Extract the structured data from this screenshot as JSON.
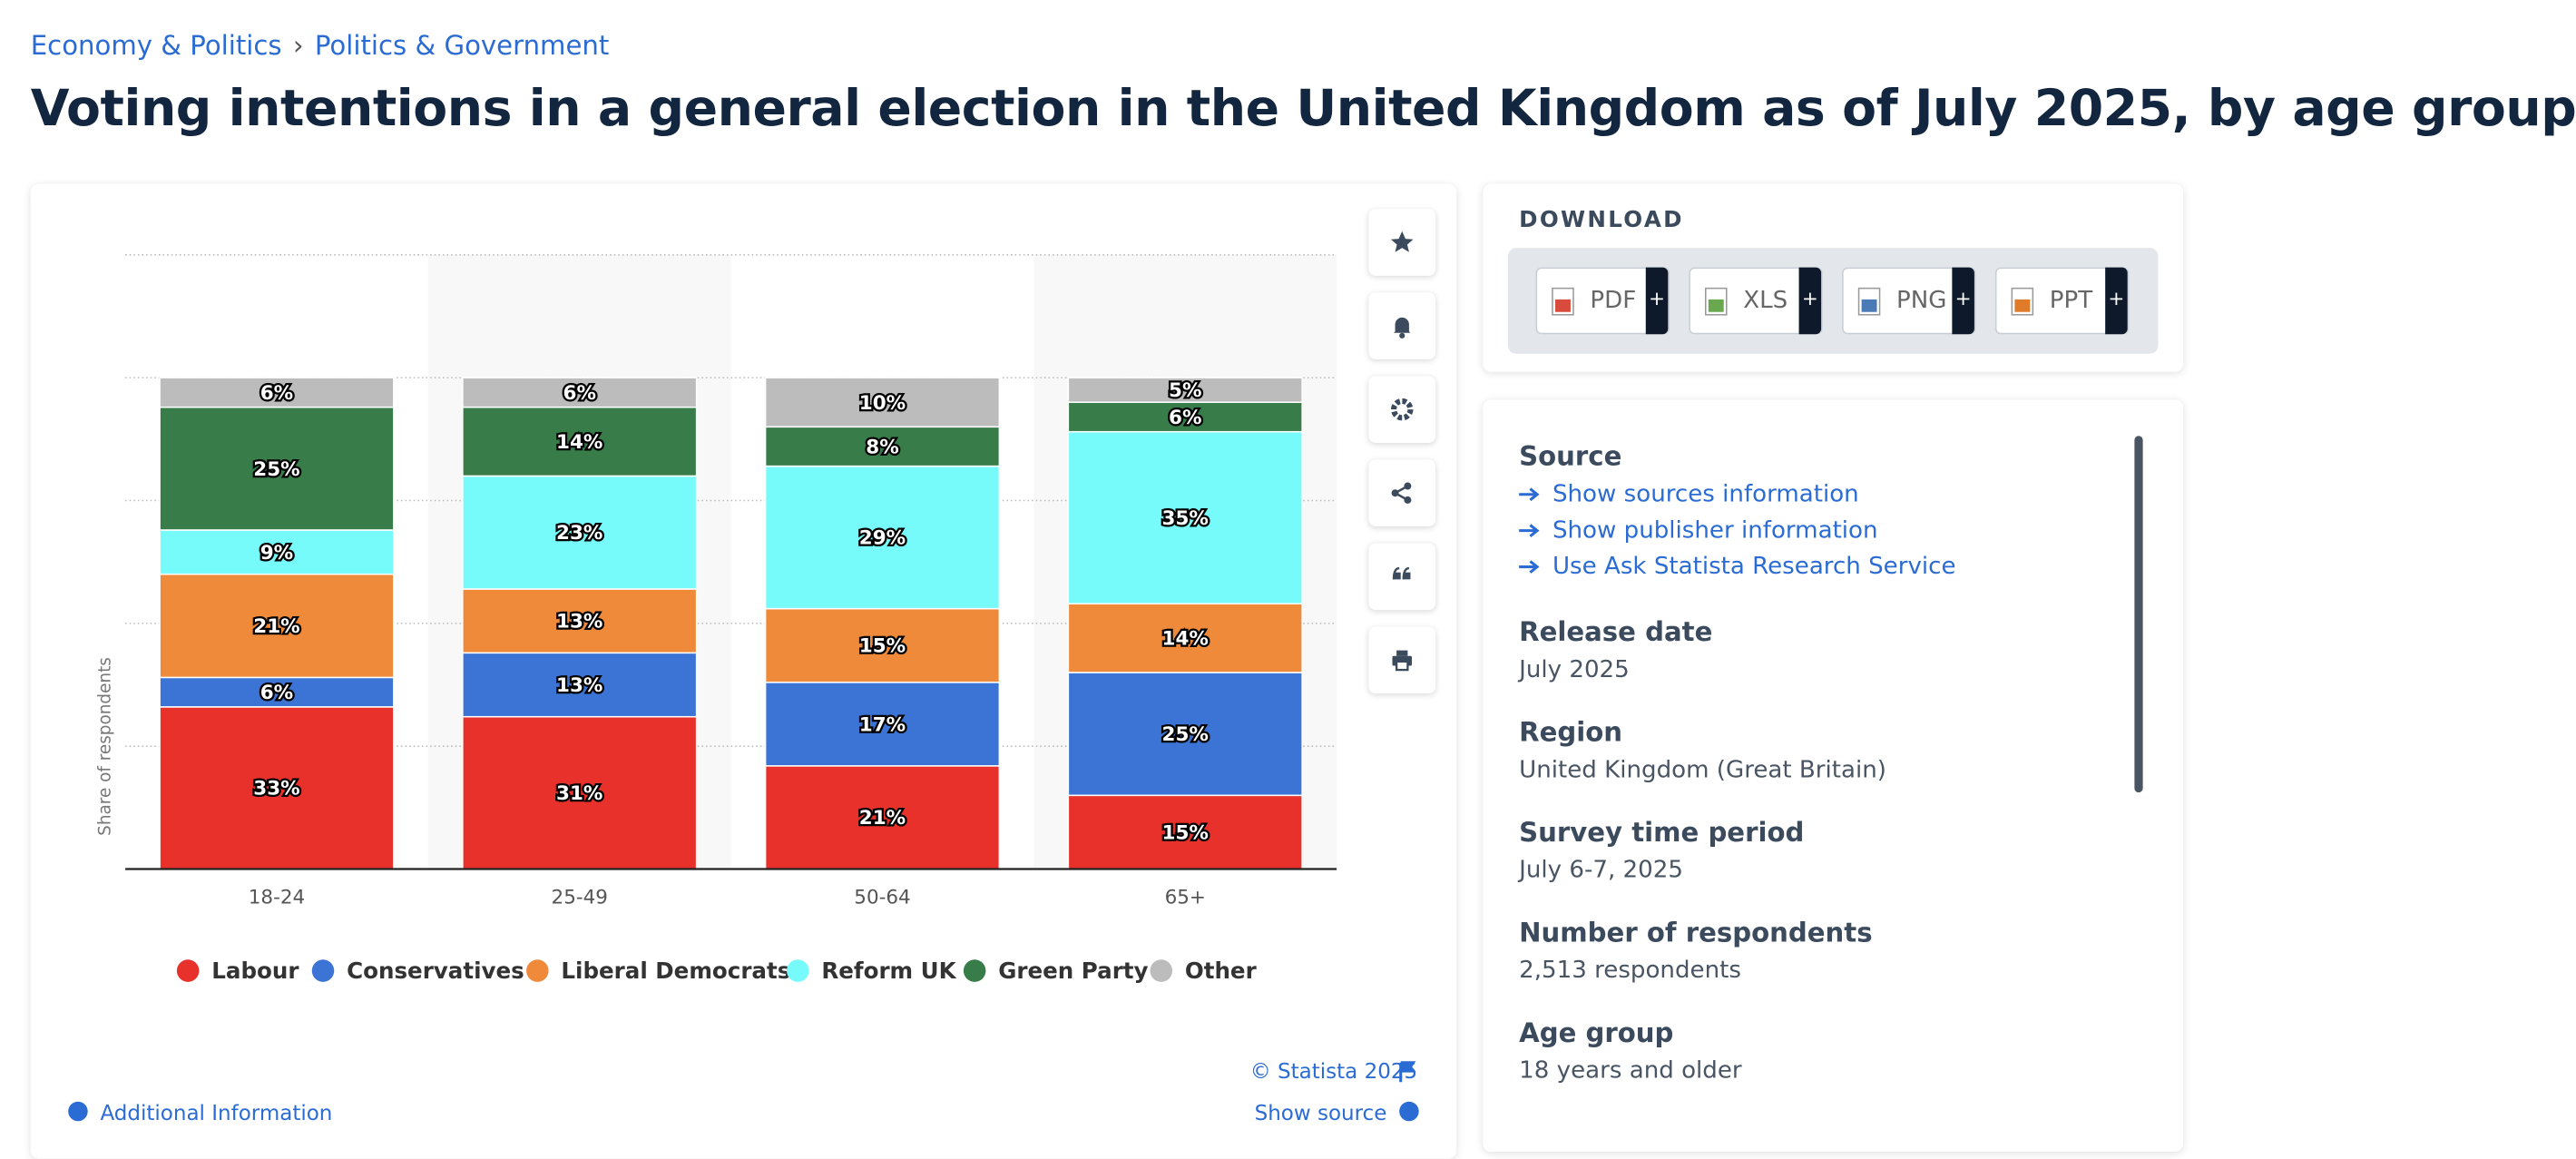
{
  "page": {
    "breadcrumb": [
      "Economy & Politics",
      "Politics & Government"
    ],
    "breadcrumb_sep": "›",
    "title": "Voting intentions in a general election in the United Kingdom as of July 2025, by age group",
    "download": {
      "heading": "DOWNLOAD",
      "formats": [
        "PDF",
        "XLS",
        "PNG",
        "PPT"
      ],
      "plus": "+"
    },
    "source": {
      "heading": "Source",
      "links": [
        "Show sources information",
        "Show publisher information",
        "Use Ask Statista Research Service"
      ]
    },
    "details": [
      {
        "label": "Release date",
        "value": "July 2025"
      },
      {
        "label": "Region",
        "value": "United Kingdom (Great Britain)"
      },
      {
        "label": "Survey time period",
        "value": "July 6-7, 2025"
      },
      {
        "label": "Number of respondents",
        "value": "2,513 respondents"
      },
      {
        "label": "Age group",
        "value": "18 years and older"
      }
    ],
    "copyright": "© Statista 2025",
    "additional_info": "Additional Information",
    "show_source": "Show source"
  },
  "chart_data": {
    "type": "stacked_bar",
    "y_label": "Share of respondents",
    "categories": [
      "18-24",
      "25-49",
      "50-64",
      "65+"
    ],
    "ylim": [
      0,
      125
    ],
    "yticks": [
      0,
      25,
      50,
      75,
      100,
      125
    ],
    "grid": true,
    "series": [
      {
        "name": "Labour",
        "color": "#e8312a",
        "values": [
          33,
          31,
          21,
          15
        ],
        "value_labels": [
          "33%",
          "31%",
          "21%",
          "15%"
        ]
      },
      {
        "name": "Conservatives",
        "color": "#3c74d6",
        "values": [
          6,
          13,
          17,
          25
        ],
        "value_labels": [
          "6%",
          "13%",
          "17%",
          "25%"
        ]
      },
      {
        "name": "Liberal Democrats",
        "color": "#ef8a3a",
        "values": [
          21,
          13,
          15,
          14
        ],
        "value_labels": [
          "21%",
          "13%",
          "15%",
          "14%"
        ]
      },
      {
        "name": "Reform UK",
        "color": "#76fafa",
        "values": [
          9,
          23,
          29,
          35
        ],
        "value_labels": [
          "9%",
          "23%",
          "29%",
          "35%"
        ]
      },
      {
        "name": "Green Party",
        "color": "#377c49",
        "values": [
          25,
          14,
          8,
          6
        ],
        "value_labels": [
          "25%",
          "14%",
          "8%",
          "6%"
        ]
      },
      {
        "name": "Other",
        "color": "#bcbcbc",
        "values": [
          6,
          6,
          10,
          5
        ],
        "value_labels": [
          "6%",
          "6%",
          "10%",
          "5%"
        ]
      }
    ]
  }
}
